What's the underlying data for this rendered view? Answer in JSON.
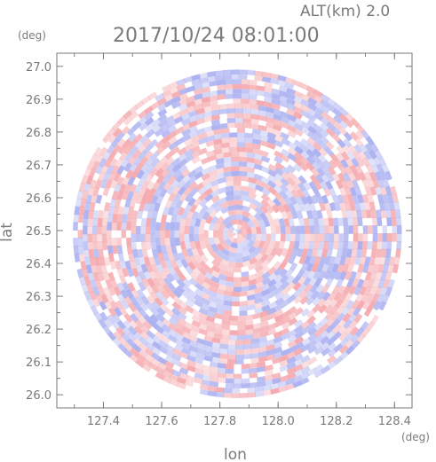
{
  "chart_data": {
    "type": "heatmap",
    "title": "2017/10/24 08:01:00",
    "subtitle": "ALT(km) 2.0",
    "xlabel": "lon",
    "ylabel": "lat",
    "x_unit": "(deg)",
    "y_unit": "(deg)",
    "xlim": [
      127.24,
      128.46
    ],
    "ylim": [
      25.96,
      27.04
    ],
    "xticks": [
      "127.4",
      "127.6",
      "127.8",
      "128.0",
      "128.2",
      "128.4"
    ],
    "yticks": [
      "26.0",
      "26.1",
      "26.2",
      "26.3",
      "26.4",
      "26.5",
      "26.6",
      "26.7",
      "26.8",
      "26.9",
      "27.0"
    ],
    "radar_center": {
      "lon": 127.86,
      "lat": 26.49
    },
    "radar_extent_deg_lat": 0.5,
    "grid": false,
    "colors": {
      "positive": "#f4a6ab",
      "negative": "#a8aef0",
      "axis": "#7a7a7a",
      "background": "#ffffff"
    }
  }
}
